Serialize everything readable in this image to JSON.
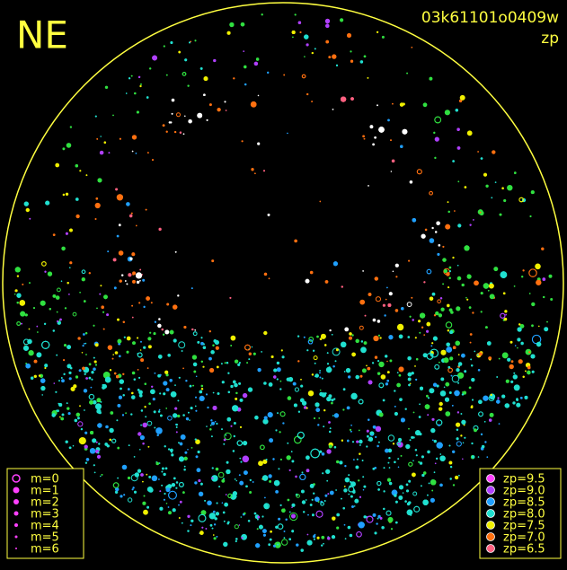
{
  "header": {
    "title": "NE",
    "image_id": "03k61101o0409w",
    "mode": "zp"
  },
  "legend_m": {
    "items": [
      "m=0",
      "m=1",
      "m=2",
      "m=3",
      "m=4",
      "m=5",
      "m=6"
    ]
  },
  "legend_zp": {
    "items": [
      {
        "label": "zp=9.5",
        "color": "#ff40ff"
      },
      {
        "label": "zp=9.0",
        "color": "#b040ff"
      },
      {
        "label": "zp=8.5",
        "color": "#20a0ff"
      },
      {
        "label": "zp=8.0",
        "color": "#20e0d0"
      },
      {
        "label": "zp=7.5",
        "color": "#f0f000"
      },
      {
        "label": "zp=7.0",
        "color": "#ff7010"
      },
      {
        "label": "zp=6.5",
        "color": "#ff6080"
      }
    ]
  }
}
